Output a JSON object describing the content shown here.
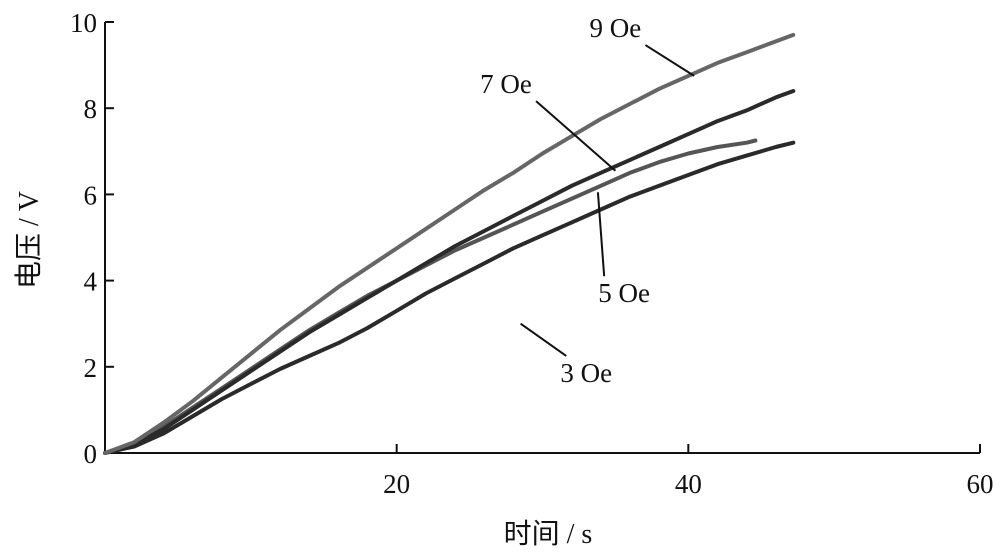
{
  "chart_data": {
    "type": "line",
    "xlabel": "时间 / s",
    "ylabel": "电压 / V",
    "xlim": [
      0,
      60
    ],
    "ylim": [
      0,
      10
    ],
    "x_ticks": [
      0,
      20,
      40,
      60
    ],
    "y_ticks": [
      0,
      2,
      4,
      6,
      8,
      10
    ],
    "grid": false,
    "series": [
      {
        "name": "3 Oe",
        "color": "#2a2a2a",
        "label_pos": [
          33.0,
          1.65
        ],
        "leader_to": [
          28.5,
          3.0
        ],
        "points": [
          [
            0,
            0
          ],
          [
            2,
            0.15
          ],
          [
            4,
            0.45
          ],
          [
            6,
            0.85
          ],
          [
            8,
            1.25
          ],
          [
            10,
            1.6
          ],
          [
            12,
            1.95
          ],
          [
            14,
            2.25
          ],
          [
            16,
            2.55
          ],
          [
            18,
            2.9
          ],
          [
            20,
            3.3
          ],
          [
            22,
            3.7
          ],
          [
            24,
            4.05
          ],
          [
            26,
            4.4
          ],
          [
            28,
            4.75
          ],
          [
            30,
            5.05
          ],
          [
            32,
            5.35
          ],
          [
            34,
            5.65
          ],
          [
            36,
            5.95
          ],
          [
            38,
            6.2
          ],
          [
            40,
            6.45
          ],
          [
            42,
            6.7
          ],
          [
            44,
            6.9
          ],
          [
            46,
            7.1
          ],
          [
            47.2,
            7.2
          ]
        ]
      },
      {
        "name": "5 Oe",
        "color": "#555555",
        "label_pos": [
          35.6,
          3.5
        ],
        "leader_to": [
          33.8,
          6.05
        ],
        "points": [
          [
            0,
            0
          ],
          [
            2,
            0.22
          ],
          [
            4,
            0.6
          ],
          [
            6,
            1.05
          ],
          [
            8,
            1.5
          ],
          [
            10,
            1.95
          ],
          [
            12,
            2.4
          ],
          [
            14,
            2.85
          ],
          [
            16,
            3.25
          ],
          [
            18,
            3.65
          ],
          [
            20,
            4.0
          ],
          [
            22,
            4.35
          ],
          [
            24,
            4.7
          ],
          [
            26,
            5.0
          ],
          [
            28,
            5.3
          ],
          [
            30,
            5.6
          ],
          [
            32,
            5.9
          ],
          [
            34,
            6.2
          ],
          [
            36,
            6.5
          ],
          [
            38,
            6.75
          ],
          [
            40,
            6.95
          ],
          [
            42,
            7.1
          ],
          [
            44,
            7.2
          ],
          [
            44.6,
            7.25
          ]
        ]
      },
      {
        "name": "7 Oe",
        "color": "#2a2a2a",
        "label_pos": [
          27.5,
          8.35
        ],
        "leader_to": [
          35.0,
          6.55
        ],
        "points": [
          [
            0,
            0
          ],
          [
            2,
            0.2
          ],
          [
            4,
            0.55
          ],
          [
            6,
            1.0
          ],
          [
            8,
            1.45
          ],
          [
            10,
            1.9
          ],
          [
            12,
            2.35
          ],
          [
            14,
            2.8
          ],
          [
            16,
            3.2
          ],
          [
            18,
            3.6
          ],
          [
            20,
            4.0
          ],
          [
            22,
            4.4
          ],
          [
            24,
            4.8
          ],
          [
            26,
            5.15
          ],
          [
            28,
            5.5
          ],
          [
            30,
            5.85
          ],
          [
            32,
            6.2
          ],
          [
            34,
            6.5
          ],
          [
            36,
            6.8
          ],
          [
            38,
            7.1
          ],
          [
            40,
            7.4
          ],
          [
            42,
            7.7
          ],
          [
            44,
            7.95
          ],
          [
            46,
            8.25
          ],
          [
            47.2,
            8.4
          ]
        ]
      },
      {
        "name": "9 Oe",
        "color": "#666666",
        "label_pos": [
          35.0,
          9.65
        ],
        "leader_to": [
          40.4,
          8.75
        ],
        "points": [
          [
            0,
            0
          ],
          [
            2,
            0.25
          ],
          [
            4,
            0.7
          ],
          [
            6,
            1.2
          ],
          [
            8,
            1.75
          ],
          [
            10,
            2.3
          ],
          [
            12,
            2.85
          ],
          [
            14,
            3.35
          ],
          [
            16,
            3.85
          ],
          [
            18,
            4.3
          ],
          [
            20,
            4.75
          ],
          [
            22,
            5.2
          ],
          [
            24,
            5.65
          ],
          [
            26,
            6.1
          ],
          [
            28,
            6.5
          ],
          [
            30,
            6.95
          ],
          [
            32,
            7.35
          ],
          [
            34,
            7.75
          ],
          [
            36,
            8.1
          ],
          [
            38,
            8.45
          ],
          [
            40,
            8.75
          ],
          [
            42,
            9.05
          ],
          [
            44,
            9.3
          ],
          [
            46,
            9.55
          ],
          [
            47.2,
            9.7
          ]
        ]
      }
    ]
  }
}
